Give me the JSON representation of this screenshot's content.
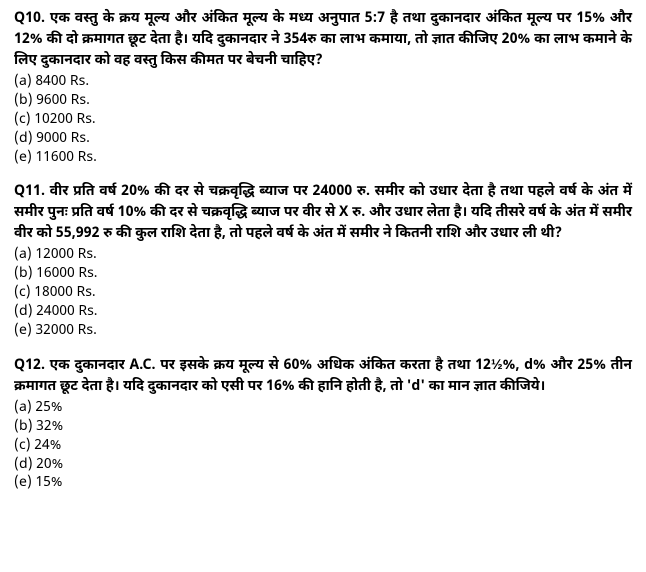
{
  "questions": [
    {
      "number": "Q10.",
      "text": "एक वस्तु के क्रय मूल्य और अंकित मूल्य के मध्य अनुपात 5:7 है तथा दुकानदार अंकित मूल्य पर 15% और 12% की दो क्रमागत छूट देता है। यदि दुकानदार ने 354रु का लाभ कमाया, तो ज्ञात कीजिए 20% का लाभ कमाने के लिए दुकानदार को वह वस्तु किस कीमत पर बेचनी चाहिए?",
      "options": [
        "(a) 8400 Rs.",
        "(b) 9600 Rs.",
        "(c) 10200 Rs.",
        "(d) 9000 Rs.",
        "(e) 11600 Rs."
      ]
    },
    {
      "number": "Q11.",
      "text": "वीर प्रति वर्ष 20% की दर से चक्रवृद्धि ब्याज पर 24000 रु. समीर को उधार देता है तथा पहले वर्ष के अंत में समीर पुनः प्रति वर्ष 10% की दर से चक्रवृद्धि ब्याज पर वीर से X रु. और उधार लेता है। यदि तीसरे वर्ष के अंत में समीर वीर को 55,992 रु की कुल राशि देता है, तो पहले वर्ष के अंत में समीर ने कितनी राशि और उधार ली थी?",
      "options": [
        "(a) 12000 Rs.",
        "(b) 16000 Rs.",
        "(c) 18000 Rs.",
        "(d) 24000 Rs.",
        "(e) 32000 Rs."
      ]
    },
    {
      "number": "Q12.",
      "text": "एक दुकानदार A.C. पर इसके क्रय मूल्य से 60% अधिक अंकित करता है तथा 12½%, d% और 25% तीन क्रमागत छूट देता है। यदि दुकानदार को एसी पर 16% की हानि होती है, तो 'd' का मान ज्ञात कीजिये।",
      "options": [
        "(a) 25%",
        "(b) 32%",
        "(c) 24%",
        "(d) 20%",
        "(e) 15%"
      ]
    }
  ],
  "styles": {
    "background_color": "#ffffff",
    "text_color": "#000000",
    "font_size_pt": 11,
    "question_font_weight": "bold",
    "option_font_weight": "normal",
    "line_height": 1.5
  }
}
